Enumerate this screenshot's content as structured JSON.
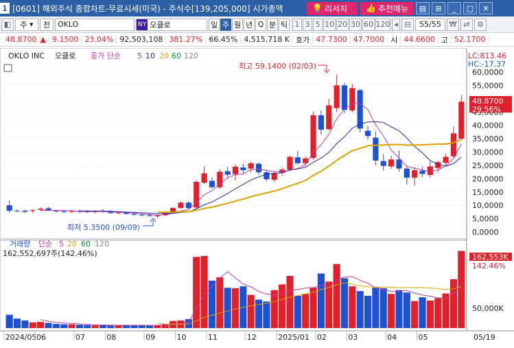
{
  "window": {
    "badge": "1",
    "title": "[0601] 해외주식 종합차트-무료시세(미국) - 주식수[139,205,000] 시가총액",
    "research_label": "리서치",
    "recommend_label": "추천메뉴"
  },
  "toolbar": {
    "market": "주",
    "type": "전",
    "ticker": "OKLO",
    "exchange_badge": "NY",
    "name": "오클로",
    "periods": [
      "일",
      "주",
      "월",
      "년",
      "Q",
      "분",
      "틱"
    ],
    "active_period": "주",
    "intervals": [
      "1",
      "3",
      "5",
      "10",
      "20",
      "30",
      "60",
      "120"
    ],
    "page_count": "55/55"
  },
  "quote": {
    "price": "48.8700",
    "change": "9.1500",
    "change_pct": "23.04%",
    "volume": "92,503,108",
    "volume_ratio": "381.27%",
    "turnover_pct": "66.45%",
    "amount": "4,515,718 K",
    "ask_label": "호가",
    "ask": "47.7300",
    "bid": "47.7000",
    "time_label": "시",
    "open": "44.6600",
    "high_label": "고",
    "high": "52.1700"
  },
  "price_panel": {
    "legend_name": "OKLO INC",
    "legend_name_kr": "오클로",
    "legend_ma_label": "종가 단순",
    "ma_periods": [
      "5",
      "10",
      "20",
      "60",
      "120"
    ],
    "lc_label": "LC:813.46",
    "hc_label": "HC:-17.37",
    "high_annotation": "최고 59.1400 (02/03)",
    "low_annotation": "최저 5.3500 (09/09)",
    "last_price_tag": "48.8700",
    "last_pct_tag": "29.56%",
    "y_ticks": [
      "60,0000",
      "55,0000",
      "50,0000",
      "45,0000",
      "40,0000",
      "35,0000",
      "30,0000",
      "25,0000",
      "20,0000",
      "15,0000",
      "10,0000",
      "5,0000",
      "0,0000"
    ]
  },
  "volume_panel": {
    "legend_label": "거래량",
    "legend_ma_label": "단순",
    "ma_periods": [
      "5",
      "20",
      "60",
      "120"
    ],
    "current_text": "162,552,697주(142.46%)",
    "last_tag": "162,553K",
    "last_pct_tag": "142.46%",
    "y_tick": "50,000K"
  },
  "x_axis": {
    "labels": [
      "2024/05",
      "06",
      "07",
      "08",
      "09",
      "10",
      "11",
      "12",
      "2025/01",
      "02",
      "03",
      "04",
      "05",
      "05/19"
    ]
  },
  "colors": {
    "up": "#e0202a",
    "down": "#1e50d2",
    "ma5": "#c03aa0",
    "ma10": "#1c2ea8",
    "ma20": "#e0a000"
  },
  "chart_data": {
    "type": "candlestick",
    "ohlc": [
      [
        10.0,
        11.8,
        7.2,
        8.0
      ],
      [
        8.0,
        8.6,
        7.4,
        7.9
      ],
      [
        8.0,
        8.4,
        7.2,
        7.6
      ],
      [
        7.9,
        8.6,
        7.1,
        8.2
      ],
      [
        8.4,
        9.2,
        7.8,
        8.8
      ],
      [
        8.9,
        9.4,
        7.8,
        8.2
      ],
      [
        7.9,
        8.4,
        7.4,
        7.7
      ],
      [
        7.8,
        8.2,
        7.2,
        7.5
      ],
      [
        7.6,
        8.1,
        7.1,
        7.8
      ],
      [
        7.8,
        8.4,
        7.2,
        7.6
      ],
      [
        7.7,
        8.2,
        7.2,
        7.5
      ],
      [
        7.5,
        8.1,
        7.0,
        7.9
      ],
      [
        7.9,
        8.6,
        7.3,
        7.6
      ],
      [
        7.6,
        8.2,
        6.9,
        7.1
      ],
      [
        7.2,
        7.8,
        6.6,
        7.3
      ],
      [
        7.3,
        7.7,
        6.5,
        6.8
      ],
      [
        6.8,
        7.3,
        6.1,
        6.5
      ],
      [
        6.5,
        7.0,
        5.9,
        6.3
      ],
      [
        6.3,
        6.9,
        5.8,
        6.0
      ],
      [
        5.9,
        6.4,
        5.35,
        6.2
      ],
      [
        6.3,
        7.6,
        6.0,
        7.3
      ],
      [
        7.4,
        9.3,
        7.1,
        9.0
      ],
      [
        9.0,
        11.5,
        8.8,
        11.0
      ],
      [
        11.0,
        11.6,
        8.6,
        9.0
      ],
      [
        9.2,
        19.5,
        8.8,
        18.8
      ],
      [
        18.5,
        24.6,
        18.0,
        22.0
      ],
      [
        19.2,
        20.4,
        16.4,
        16.8
      ],
      [
        16.8,
        23.6,
        16.2,
        22.6
      ],
      [
        22.8,
        24.4,
        20.5,
        21.5
      ],
      [
        21.7,
        25.4,
        19.4,
        24.5
      ],
      [
        24.2,
        25.6,
        21.8,
        23.2
      ],
      [
        23.8,
        26.4,
        22.4,
        25.8
      ],
      [
        25.6,
        26.2,
        21.4,
        22.4
      ],
      [
        22.4,
        23.4,
        19.0,
        19.8
      ],
      [
        19.6,
        22.8,
        18.8,
        22.0
      ],
      [
        22.2,
        24.2,
        21.0,
        23.4
      ],
      [
        23.4,
        28.6,
        22.8,
        28.2
      ],
      [
        28.0,
        30.4,
        25.4,
        25.8
      ],
      [
        25.8,
        28.4,
        24.8,
        27.6
      ],
      [
        27.8,
        45.2,
        27.0,
        43.8
      ],
      [
        43.8,
        45.6,
        36.4,
        38.4
      ],
      [
        38.6,
        50.0,
        38.0,
        47.5
      ],
      [
        46.5,
        59.14,
        45.0,
        55.0
      ],
      [
        55.0,
        56.0,
        44.6,
        45.8
      ],
      [
        45.6,
        55.6,
        44.8,
        54.0
      ],
      [
        53.2,
        53.8,
        37.4,
        38.8
      ],
      [
        38.0,
        39.8,
        34.6,
        36.0
      ],
      [
        35.4,
        37.8,
        25.0,
        26.8
      ],
      [
        26.6,
        29.2,
        23.0,
        24.8
      ],
      [
        24.6,
        28.6,
        23.6,
        27.2
      ],
      [
        27.2,
        30.6,
        22.6,
        23.8
      ],
      [
        23.8,
        24.8,
        17.8,
        20.4
      ],
      [
        20.4,
        24.4,
        17.4,
        23.2
      ],
      [
        23.0,
        24.4,
        20.6,
        21.8
      ],
      [
        21.4,
        26.4,
        20.4,
        24.6
      ],
      [
        24.0,
        26.6,
        22.4,
        26.2
      ],
      [
        26.0,
        29.4,
        24.6,
        28.2
      ],
      [
        28.4,
        39.6,
        27.8,
        37.0
      ],
      [
        35.0,
        51.4,
        34.6,
        48.87
      ]
    ],
    "volume_k": [
      28000,
      20000,
      16000,
      12000,
      13000,
      11000,
      9000,
      8000,
      8000,
      7000,
      6500,
      6000,
      6000,
      5500,
      6000,
      6500,
      5500,
      6000,
      5000,
      6000,
      8000,
      15000,
      16000,
      19000,
      150000,
      152000,
      100000,
      107000,
      85000,
      84000,
      88000,
      70000,
      60000,
      56000,
      80000,
      92000,
      110000,
      68000,
      72000,
      85000,
      115000,
      98000,
      135000,
      105000,
      88000,
      78000,
      68000,
      85000,
      84000,
      72000,
      80000,
      75000,
      57000,
      65000,
      58000,
      63000,
      73000,
      103000,
      162553
    ],
    "y_range_price": [
      0,
      60
    ],
    "x_labels": [
      "2024/05",
      "06",
      "07",
      "08",
      "09",
      "10",
      "11",
      "12",
      "2025/01",
      "02",
      "03",
      "04",
      "05",
      "05/19"
    ]
  }
}
